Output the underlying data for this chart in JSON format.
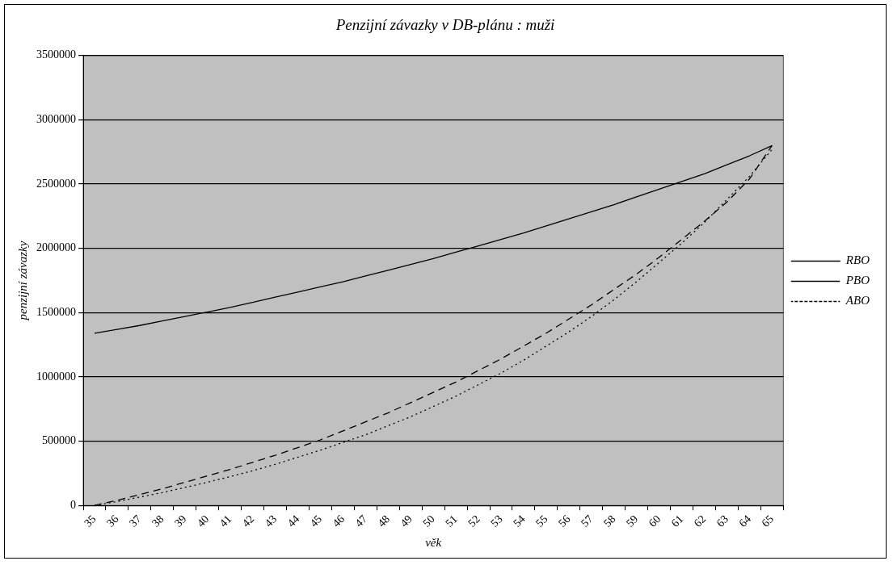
{
  "chart_data": {
    "type": "line",
    "title": "Penzijní závazky v DB-plánu : muži",
    "xlabel": "věk",
    "ylabel": "penzijní závazky",
    "categories": [
      "35",
      "36",
      "37",
      "38",
      "39",
      "40",
      "41",
      "42",
      "43",
      "44",
      "45",
      "46",
      "47",
      "48",
      "49",
      "50",
      "51",
      "52",
      "53",
      "54",
      "55",
      "56",
      "57",
      "58",
      "59",
      "60",
      "61",
      "62",
      "63",
      "64",
      "65"
    ],
    "series": [
      {
        "name": "RBO",
        "color": "#000000",
        "line_style": "solid",
        "values": [
          1340000,
          1370000,
          1400000,
          1435000,
          1470000,
          1505000,
          1540000,
          1580000,
          1620000,
          1660000,
          1700000,
          1740000,
          1785000,
          1830000,
          1875000,
          1920000,
          1970000,
          2020000,
          2070000,
          2120000,
          2175000,
          2230000,
          2285000,
          2340000,
          2400000,
          2460000,
          2520000,
          2580000,
          2650000,
          2720000,
          2800000
        ]
      },
      {
        "name": "PBO",
        "color": "#000000",
        "line_style": "dashed",
        "values": [
          0,
          40000,
          85000,
          130000,
          180000,
          230000,
          280000,
          335000,
          390000,
          450000,
          510000,
          580000,
          650000,
          720000,
          800000,
          880000,
          960000,
          1050000,
          1140000,
          1240000,
          1340000,
          1450000,
          1560000,
          1680000,
          1800000,
          1930000,
          2070000,
          2210000,
          2360000,
          2540000,
          2800000
        ]
      },
      {
        "name": "ABO",
        "color": "#000000",
        "line_style": "dotted",
        "values": [
          0,
          30000,
          65000,
          100000,
          140000,
          180000,
          225000,
          270000,
          320000,
          375000,
          430000,
          490000,
          550000,
          620000,
          690000,
          770000,
          850000,
          940000,
          1030000,
          1130000,
          1240000,
          1350000,
          1470000,
          1600000,
          1740000,
          1890000,
          2040000,
          2200000,
          2380000,
          2560000,
          2770000
        ]
      }
    ],
    "ylim": [
      0,
      3500000
    ],
    "yticks": [
      0,
      500000,
      1000000,
      1500000,
      2000000,
      2500000,
      3000000,
      3500000
    ],
    "grid": "y",
    "legend": "right",
    "marker": "none"
  }
}
